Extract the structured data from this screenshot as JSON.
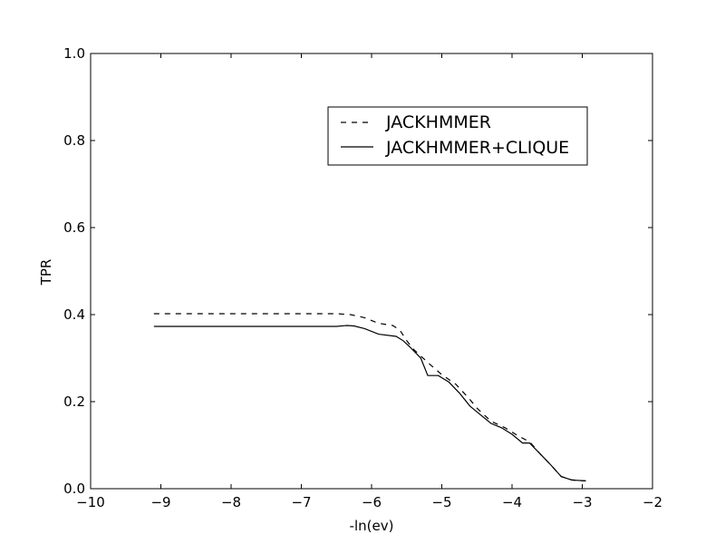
{
  "chart_data": {
    "type": "line",
    "title": "",
    "xlabel": "-ln(ev)",
    "ylabel": "TPR",
    "xlim": [
      -10,
      -2
    ],
    "ylim": [
      0.0,
      1.0
    ],
    "xticks": [
      -10,
      -9,
      -8,
      -7,
      -6,
      -5,
      -4,
      -3,
      -2
    ],
    "xtick_labels": [
      "−10",
      "−9",
      "−8",
      "−7",
      "−6",
      "−5",
      "−4",
      "−3",
      "−2"
    ],
    "yticks": [
      0.0,
      0.2,
      0.4,
      0.6,
      0.8,
      1.0
    ],
    "ytick_labels": [
      "0.0",
      "0.2",
      "0.4",
      "0.6",
      "0.8",
      "1.0"
    ],
    "grid": false,
    "legend_position": "top-right",
    "series": [
      {
        "name": "JACKHMMER",
        "style": "dashed",
        "color": "#000000",
        "x": [
          -9.1,
          -6.5,
          -6.3,
          -6.1,
          -5.9,
          -5.7,
          -5.6,
          -5.5,
          -5.4,
          -5.2,
          -5.0,
          -4.8,
          -4.6,
          -4.5,
          -4.3,
          -4.1,
          -3.9,
          -3.75,
          -3.6,
          -3.45,
          -3.3,
          -3.15,
          -2.95
        ],
        "y": [
          0.402,
          0.402,
          0.4,
          0.393,
          0.38,
          0.375,
          0.365,
          0.34,
          0.32,
          0.29,
          0.262,
          0.24,
          0.205,
          0.185,
          0.155,
          0.14,
          0.12,
          0.108,
          0.08,
          0.055,
          0.028,
          0.02,
          0.018
        ]
      },
      {
        "name": "JACKHMMER+CLIQUE",
        "style": "solid",
        "color": "#000000",
        "x": [
          -9.1,
          -6.5,
          -6.35,
          -6.25,
          -6.1,
          -5.9,
          -5.65,
          -5.55,
          -5.45,
          -5.3,
          -5.2,
          -5.05,
          -4.9,
          -4.75,
          -4.6,
          -4.45,
          -4.3,
          -4.15,
          -4.0,
          -3.85,
          -3.75,
          -3.6,
          -3.45,
          -3.3,
          -3.15,
          -2.95
        ],
        "y": [
          0.373,
          0.373,
          0.375,
          0.374,
          0.368,
          0.355,
          0.35,
          0.34,
          0.325,
          0.3,
          0.26,
          0.26,
          0.245,
          0.22,
          0.19,
          0.17,
          0.15,
          0.14,
          0.125,
          0.105,
          0.105,
          0.08,
          0.055,
          0.028,
          0.02,
          0.018
        ]
      }
    ]
  }
}
